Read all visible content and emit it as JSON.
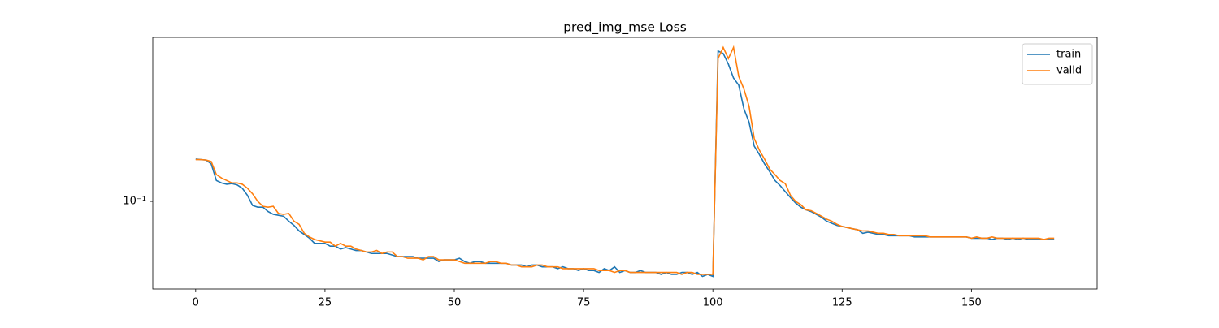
{
  "chart_data": {
    "type": "line",
    "title": "pred_img_mse Loss",
    "log_y": true,
    "legend": "upper right",
    "x": [
      0,
      1,
      2,
      3,
      4,
      5,
      6,
      7,
      8,
      9,
      10,
      11,
      12,
      13,
      14,
      15,
      16,
      17,
      18,
      19,
      20,
      21,
      22,
      23,
      24,
      25,
      26,
      27,
      28,
      29,
      30,
      31,
      32,
      33,
      34,
      35,
      36,
      37,
      38,
      39,
      40,
      41,
      42,
      43,
      44,
      45,
      46,
      47,
      48,
      49,
      50,
      51,
      52,
      53,
      54,
      55,
      56,
      57,
      58,
      59,
      60,
      61,
      62,
      63,
      64,
      65,
      66,
      67,
      68,
      69,
      70,
      71,
      72,
      73,
      74,
      75,
      76,
      77,
      78,
      79,
      80,
      81,
      82,
      83,
      84,
      85,
      86,
      87,
      88,
      89,
      90,
      91,
      92,
      93,
      94,
      95,
      96,
      97,
      98,
      99,
      100,
      101,
      102,
      103,
      104,
      105,
      106,
      107,
      108,
      109,
      110,
      111,
      112,
      113,
      114,
      115,
      116,
      117,
      118,
      119,
      120,
      121,
      122,
      123,
      124,
      125,
      126,
      127,
      128,
      129,
      130,
      131,
      132,
      133,
      134,
      135,
      136,
      137,
      138,
      139,
      140,
      141,
      142,
      143,
      144,
      145,
      146,
      147,
      148,
      149,
      150,
      151,
      152,
      153,
      154,
      155,
      156,
      157,
      158,
      159,
      160,
      161,
      162,
      163,
      164,
      165,
      166
    ],
    "series": [
      {
        "name": "train",
        "color": "#1f77b4",
        "values": [
          0.17,
          0.169,
          0.168,
          0.16,
          0.13,
          0.126,
          0.124,
          0.125,
          0.123,
          0.118,
          0.108,
          0.095,
          0.093,
          0.093,
          0.088,
          0.085,
          0.084,
          0.083,
          0.078,
          0.074,
          0.069,
          0.066,
          0.063,
          0.059,
          0.059,
          0.059,
          0.057,
          0.057,
          0.055,
          0.056,
          0.055,
          0.054,
          0.054,
          0.053,
          0.052,
          0.052,
          0.052,
          0.052,
          0.051,
          0.05,
          0.05,
          0.05,
          0.05,
          0.049,
          0.049,
          0.049,
          0.049,
          0.047,
          0.048,
          0.048,
          0.048,
          0.049,
          0.047,
          0.046,
          0.047,
          0.047,
          0.046,
          0.046,
          0.046,
          0.046,
          0.046,
          0.045,
          0.045,
          0.045,
          0.044,
          0.045,
          0.045,
          0.044,
          0.044,
          0.044,
          0.043,
          0.044,
          0.043,
          0.043,
          0.042,
          0.043,
          0.042,
          0.042,
          0.041,
          0.043,
          0.042,
          0.044,
          0.041,
          0.042,
          0.041,
          0.041,
          0.042,
          0.041,
          0.041,
          0.041,
          0.04,
          0.041,
          0.04,
          0.04,
          0.041,
          0.041,
          0.04,
          0.041,
          0.039,
          0.04,
          0.039,
          0.66,
          0.64,
          0.56,
          0.47,
          0.43,
          0.32,
          0.27,
          0.2,
          0.18,
          0.16,
          0.145,
          0.13,
          0.122,
          0.113,
          0.105,
          0.098,
          0.093,
          0.09,
          0.088,
          0.085,
          0.082,
          0.078,
          0.076,
          0.074,
          0.073,
          0.072,
          0.071,
          0.07,
          0.067,
          0.068,
          0.067,
          0.066,
          0.066,
          0.065,
          0.065,
          0.065,
          0.065,
          0.065,
          0.064,
          0.064,
          0.064,
          0.064,
          0.064,
          0.064,
          0.064,
          0.064,
          0.064,
          0.064,
          0.064,
          0.063,
          0.063,
          0.063,
          0.063,
          0.062,
          0.063,
          0.063,
          0.062,
          0.063,
          0.062,
          0.063,
          0.062,
          0.062,
          0.062,
          0.062,
          0.062,
          0.062
        ]
      },
      {
        "name": "valid",
        "color": "#ff7f0e",
        "values": [
          0.169,
          0.169,
          0.168,
          0.165,
          0.14,
          0.134,
          0.13,
          0.126,
          0.126,
          0.124,
          0.118,
          0.11,
          0.1,
          0.094,
          0.093,
          0.094,
          0.086,
          0.085,
          0.086,
          0.078,
          0.075,
          0.067,
          0.064,
          0.062,
          0.061,
          0.06,
          0.06,
          0.057,
          0.059,
          0.057,
          0.057,
          0.055,
          0.054,
          0.053,
          0.053,
          0.054,
          0.052,
          0.053,
          0.053,
          0.05,
          0.05,
          0.049,
          0.049,
          0.049,
          0.048,
          0.05,
          0.05,
          0.048,
          0.048,
          0.048,
          0.048,
          0.047,
          0.046,
          0.046,
          0.046,
          0.046,
          0.046,
          0.047,
          0.047,
          0.046,
          0.046,
          0.045,
          0.045,
          0.044,
          0.044,
          0.044,
          0.045,
          0.045,
          0.044,
          0.044,
          0.044,
          0.043,
          0.043,
          0.043,
          0.043,
          0.043,
          0.043,
          0.043,
          0.042,
          0.042,
          0.042,
          0.041,
          0.042,
          0.042,
          0.041,
          0.041,
          0.041,
          0.041,
          0.041,
          0.041,
          0.041,
          0.041,
          0.041,
          0.041,
          0.04,
          0.041,
          0.041,
          0.04,
          0.04,
          0.04,
          0.04,
          0.6,
          0.69,
          0.6,
          0.69,
          0.48,
          0.41,
          0.33,
          0.22,
          0.19,
          0.17,
          0.15,
          0.14,
          0.13,
          0.125,
          0.108,
          0.1,
          0.096,
          0.09,
          0.089,
          0.086,
          0.083,
          0.08,
          0.078,
          0.075,
          0.073,
          0.072,
          0.071,
          0.07,
          0.069,
          0.069,
          0.068,
          0.067,
          0.067,
          0.066,
          0.066,
          0.065,
          0.065,
          0.065,
          0.065,
          0.065,
          0.065,
          0.064,
          0.064,
          0.064,
          0.064,
          0.064,
          0.064,
          0.064,
          0.064,
          0.063,
          0.064,
          0.063,
          0.063,
          0.064,
          0.063,
          0.063,
          0.063,
          0.063,
          0.063,
          0.063,
          0.063,
          0.063,
          0.063,
          0.062,
          0.063,
          0.063
        ]
      }
    ],
    "xlim": [
      -8.3,
      174.3
    ],
    "xticks": [
      0,
      25,
      50,
      75,
      100,
      125,
      150
    ],
    "ylim": [
      0.0333,
      0.783
    ],
    "yticks": [
      {
        "value": 0.1,
        "label": "10⁻¹"
      }
    ]
  }
}
